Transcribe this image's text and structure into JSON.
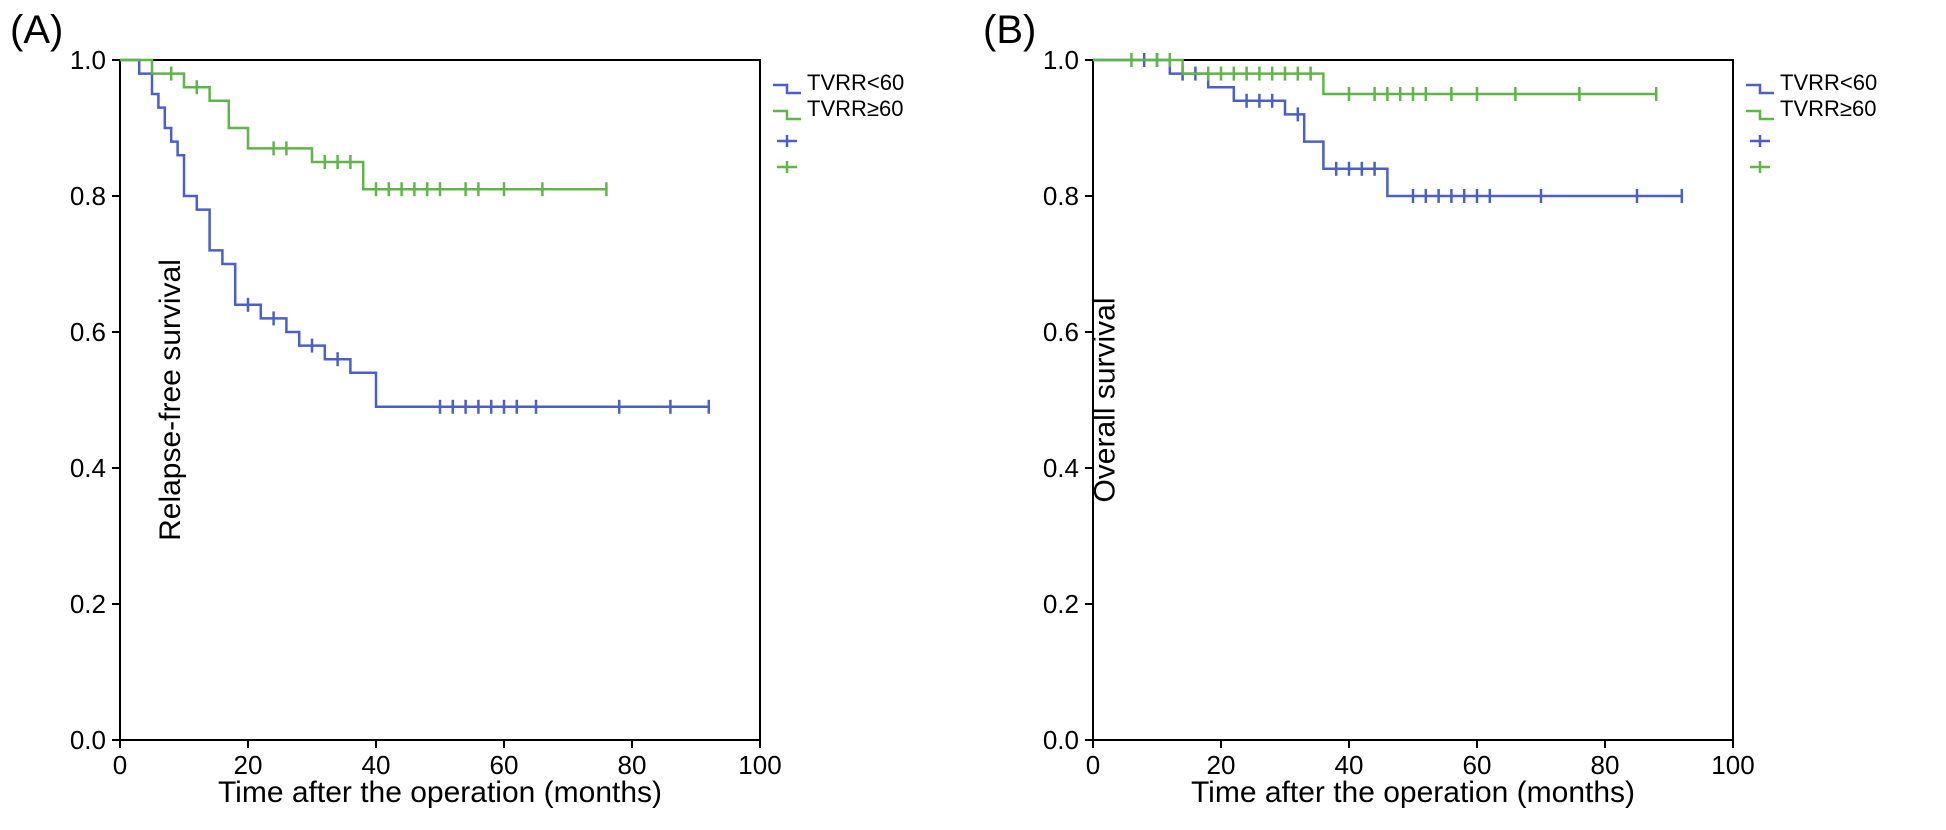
{
  "figure": {
    "background_color": "#ffffff",
    "axis_color": "#000000",
    "tick_fontsize": 26,
    "label_fontsize": 30,
    "panel_label_fontsize": 40,
    "tick_length": 8,
    "line_width": 2.5,
    "censor_tick_halfheight": 7
  },
  "legend": {
    "items": [
      {
        "label": "TVRR<60",
        "color": "#4a5fc7"
      },
      {
        "label": "TVRR≥60",
        "color": "#5fb548"
      }
    ],
    "censor_items": [
      {
        "color": "#4a5fc7"
      },
      {
        "color": "#5fb548"
      }
    ]
  },
  "axes": {
    "x": {
      "min": 0,
      "max": 100,
      "ticks": [
        0,
        20,
        40,
        60,
        80,
        100
      ],
      "title": "Time after the operation (months)"
    },
    "y": {
      "min": 0.0,
      "max": 1.0,
      "ticks": [
        0.0,
        0.2,
        0.4,
        0.6,
        0.8,
        1.0
      ]
    }
  },
  "panels": [
    {
      "id": "A",
      "panel_label": "(A)",
      "y_title": "Relapse-free survival",
      "series": [
        {
          "name": "TVRR<60",
          "color": "#4a5fc7",
          "steps": [
            [
              0,
              1.0
            ],
            [
              3,
              1.0
            ],
            [
              3,
              0.98
            ],
            [
              5,
              0.98
            ],
            [
              5,
              0.95
            ],
            [
              6,
              0.95
            ],
            [
              6,
              0.93
            ],
            [
              7,
              0.93
            ],
            [
              7,
              0.9
            ],
            [
              8,
              0.9
            ],
            [
              8,
              0.88
            ],
            [
              9,
              0.88
            ],
            [
              9,
              0.86
            ],
            [
              10,
              0.86
            ],
            [
              10,
              0.8
            ],
            [
              12,
              0.8
            ],
            [
              12,
              0.78
            ],
            [
              14,
              0.78
            ],
            [
              14,
              0.72
            ],
            [
              16,
              0.72
            ],
            [
              16,
              0.7
            ],
            [
              18,
              0.7
            ],
            [
              18,
              0.64
            ],
            [
              22,
              0.64
            ],
            [
              22,
              0.62
            ],
            [
              26,
              0.62
            ],
            [
              26,
              0.6
            ],
            [
              28,
              0.6
            ],
            [
              28,
              0.58
            ],
            [
              32,
              0.58
            ],
            [
              32,
              0.56
            ],
            [
              36,
              0.56
            ],
            [
              36,
              0.54
            ],
            [
              40,
              0.54
            ],
            [
              40,
              0.49
            ],
            [
              43,
              0.49
            ],
            [
              43,
              0.49
            ],
            [
              92,
              0.49
            ]
          ],
          "censors": [
            [
              20,
              0.64
            ],
            [
              24,
              0.62
            ],
            [
              30,
              0.58
            ],
            [
              34,
              0.56
            ],
            [
              50,
              0.49
            ],
            [
              52,
              0.49
            ],
            [
              54,
              0.49
            ],
            [
              56,
              0.49
            ],
            [
              58,
              0.49
            ],
            [
              60,
              0.49
            ],
            [
              62,
              0.49
            ],
            [
              65,
              0.49
            ],
            [
              78,
              0.49
            ],
            [
              86,
              0.49
            ],
            [
              92,
              0.49
            ]
          ]
        },
        {
          "name": "TVRR≥60",
          "color": "#5fb548",
          "steps": [
            [
              0,
              1.0
            ],
            [
              5,
              1.0
            ],
            [
              5,
              0.98
            ],
            [
              10,
              0.98
            ],
            [
              10,
              0.96
            ],
            [
              14,
              0.96
            ],
            [
              14,
              0.94
            ],
            [
              17,
              0.94
            ],
            [
              17,
              0.9
            ],
            [
              20,
              0.9
            ],
            [
              20,
              0.87
            ],
            [
              28,
              0.87
            ],
            [
              28,
              0.87
            ],
            [
              30,
              0.87
            ],
            [
              30,
              0.85
            ],
            [
              36,
              0.85
            ],
            [
              36,
              0.85
            ],
            [
              38,
              0.85
            ],
            [
              38,
              0.81
            ],
            [
              76,
              0.81
            ]
          ],
          "censors": [
            [
              8,
              0.98
            ],
            [
              12,
              0.96
            ],
            [
              24,
              0.87
            ],
            [
              26,
              0.87
            ],
            [
              32,
              0.85
            ],
            [
              34,
              0.85
            ],
            [
              36,
              0.85
            ],
            [
              40,
              0.81
            ],
            [
              42,
              0.81
            ],
            [
              44,
              0.81
            ],
            [
              46,
              0.81
            ],
            [
              48,
              0.81
            ],
            [
              50,
              0.81
            ],
            [
              54,
              0.81
            ],
            [
              56,
              0.81
            ],
            [
              60,
              0.81
            ],
            [
              66,
              0.81
            ],
            [
              76,
              0.81
            ]
          ]
        }
      ]
    },
    {
      "id": "B",
      "panel_label": "(B)",
      "y_title": "Overall survival",
      "series": [
        {
          "name": "TVRR<60",
          "color": "#4a5fc7",
          "steps": [
            [
              0,
              1.0
            ],
            [
              12,
              1.0
            ],
            [
              12,
              0.98
            ],
            [
              18,
              0.98
            ],
            [
              18,
              0.96
            ],
            [
              22,
              0.96
            ],
            [
              22,
              0.94
            ],
            [
              30,
              0.94
            ],
            [
              30,
              0.92
            ],
            [
              33,
              0.92
            ],
            [
              33,
              0.88
            ],
            [
              36,
              0.88
            ],
            [
              36,
              0.84
            ],
            [
              46,
              0.84
            ],
            [
              46,
              0.8
            ],
            [
              92,
              0.8
            ]
          ],
          "censors": [
            [
              8,
              1.0
            ],
            [
              10,
              1.0
            ],
            [
              14,
              0.98
            ],
            [
              16,
              0.98
            ],
            [
              24,
              0.94
            ],
            [
              26,
              0.94
            ],
            [
              28,
              0.94
            ],
            [
              32,
              0.92
            ],
            [
              38,
              0.84
            ],
            [
              40,
              0.84
            ],
            [
              42,
              0.84
            ],
            [
              44,
              0.84
            ],
            [
              50,
              0.8
            ],
            [
              52,
              0.8
            ],
            [
              54,
              0.8
            ],
            [
              56,
              0.8
            ],
            [
              58,
              0.8
            ],
            [
              60,
              0.8
            ],
            [
              62,
              0.8
            ],
            [
              70,
              0.8
            ],
            [
              85,
              0.8
            ],
            [
              92,
              0.8
            ]
          ]
        },
        {
          "name": "TVRR≥60",
          "color": "#5fb548",
          "steps": [
            [
              0,
              1.0
            ],
            [
              14,
              1.0
            ],
            [
              14,
              0.98
            ],
            [
              36,
              0.98
            ],
            [
              36,
              0.95
            ],
            [
              88,
              0.95
            ]
          ],
          "censors": [
            [
              6,
              1.0
            ],
            [
              10,
              1.0
            ],
            [
              12,
              1.0
            ],
            [
              18,
              0.98
            ],
            [
              20,
              0.98
            ],
            [
              22,
              0.98
            ],
            [
              24,
              0.98
            ],
            [
              26,
              0.98
            ],
            [
              28,
              0.98
            ],
            [
              30,
              0.98
            ],
            [
              32,
              0.98
            ],
            [
              34,
              0.98
            ],
            [
              40,
              0.95
            ],
            [
              44,
              0.95
            ],
            [
              46,
              0.95
            ],
            [
              48,
              0.95
            ],
            [
              50,
              0.95
            ],
            [
              52,
              0.95
            ],
            [
              56,
              0.95
            ],
            [
              60,
              0.95
            ],
            [
              66,
              0.95
            ],
            [
              76,
              0.95
            ],
            [
              88,
              0.95
            ]
          ]
        }
      ]
    }
  ]
}
